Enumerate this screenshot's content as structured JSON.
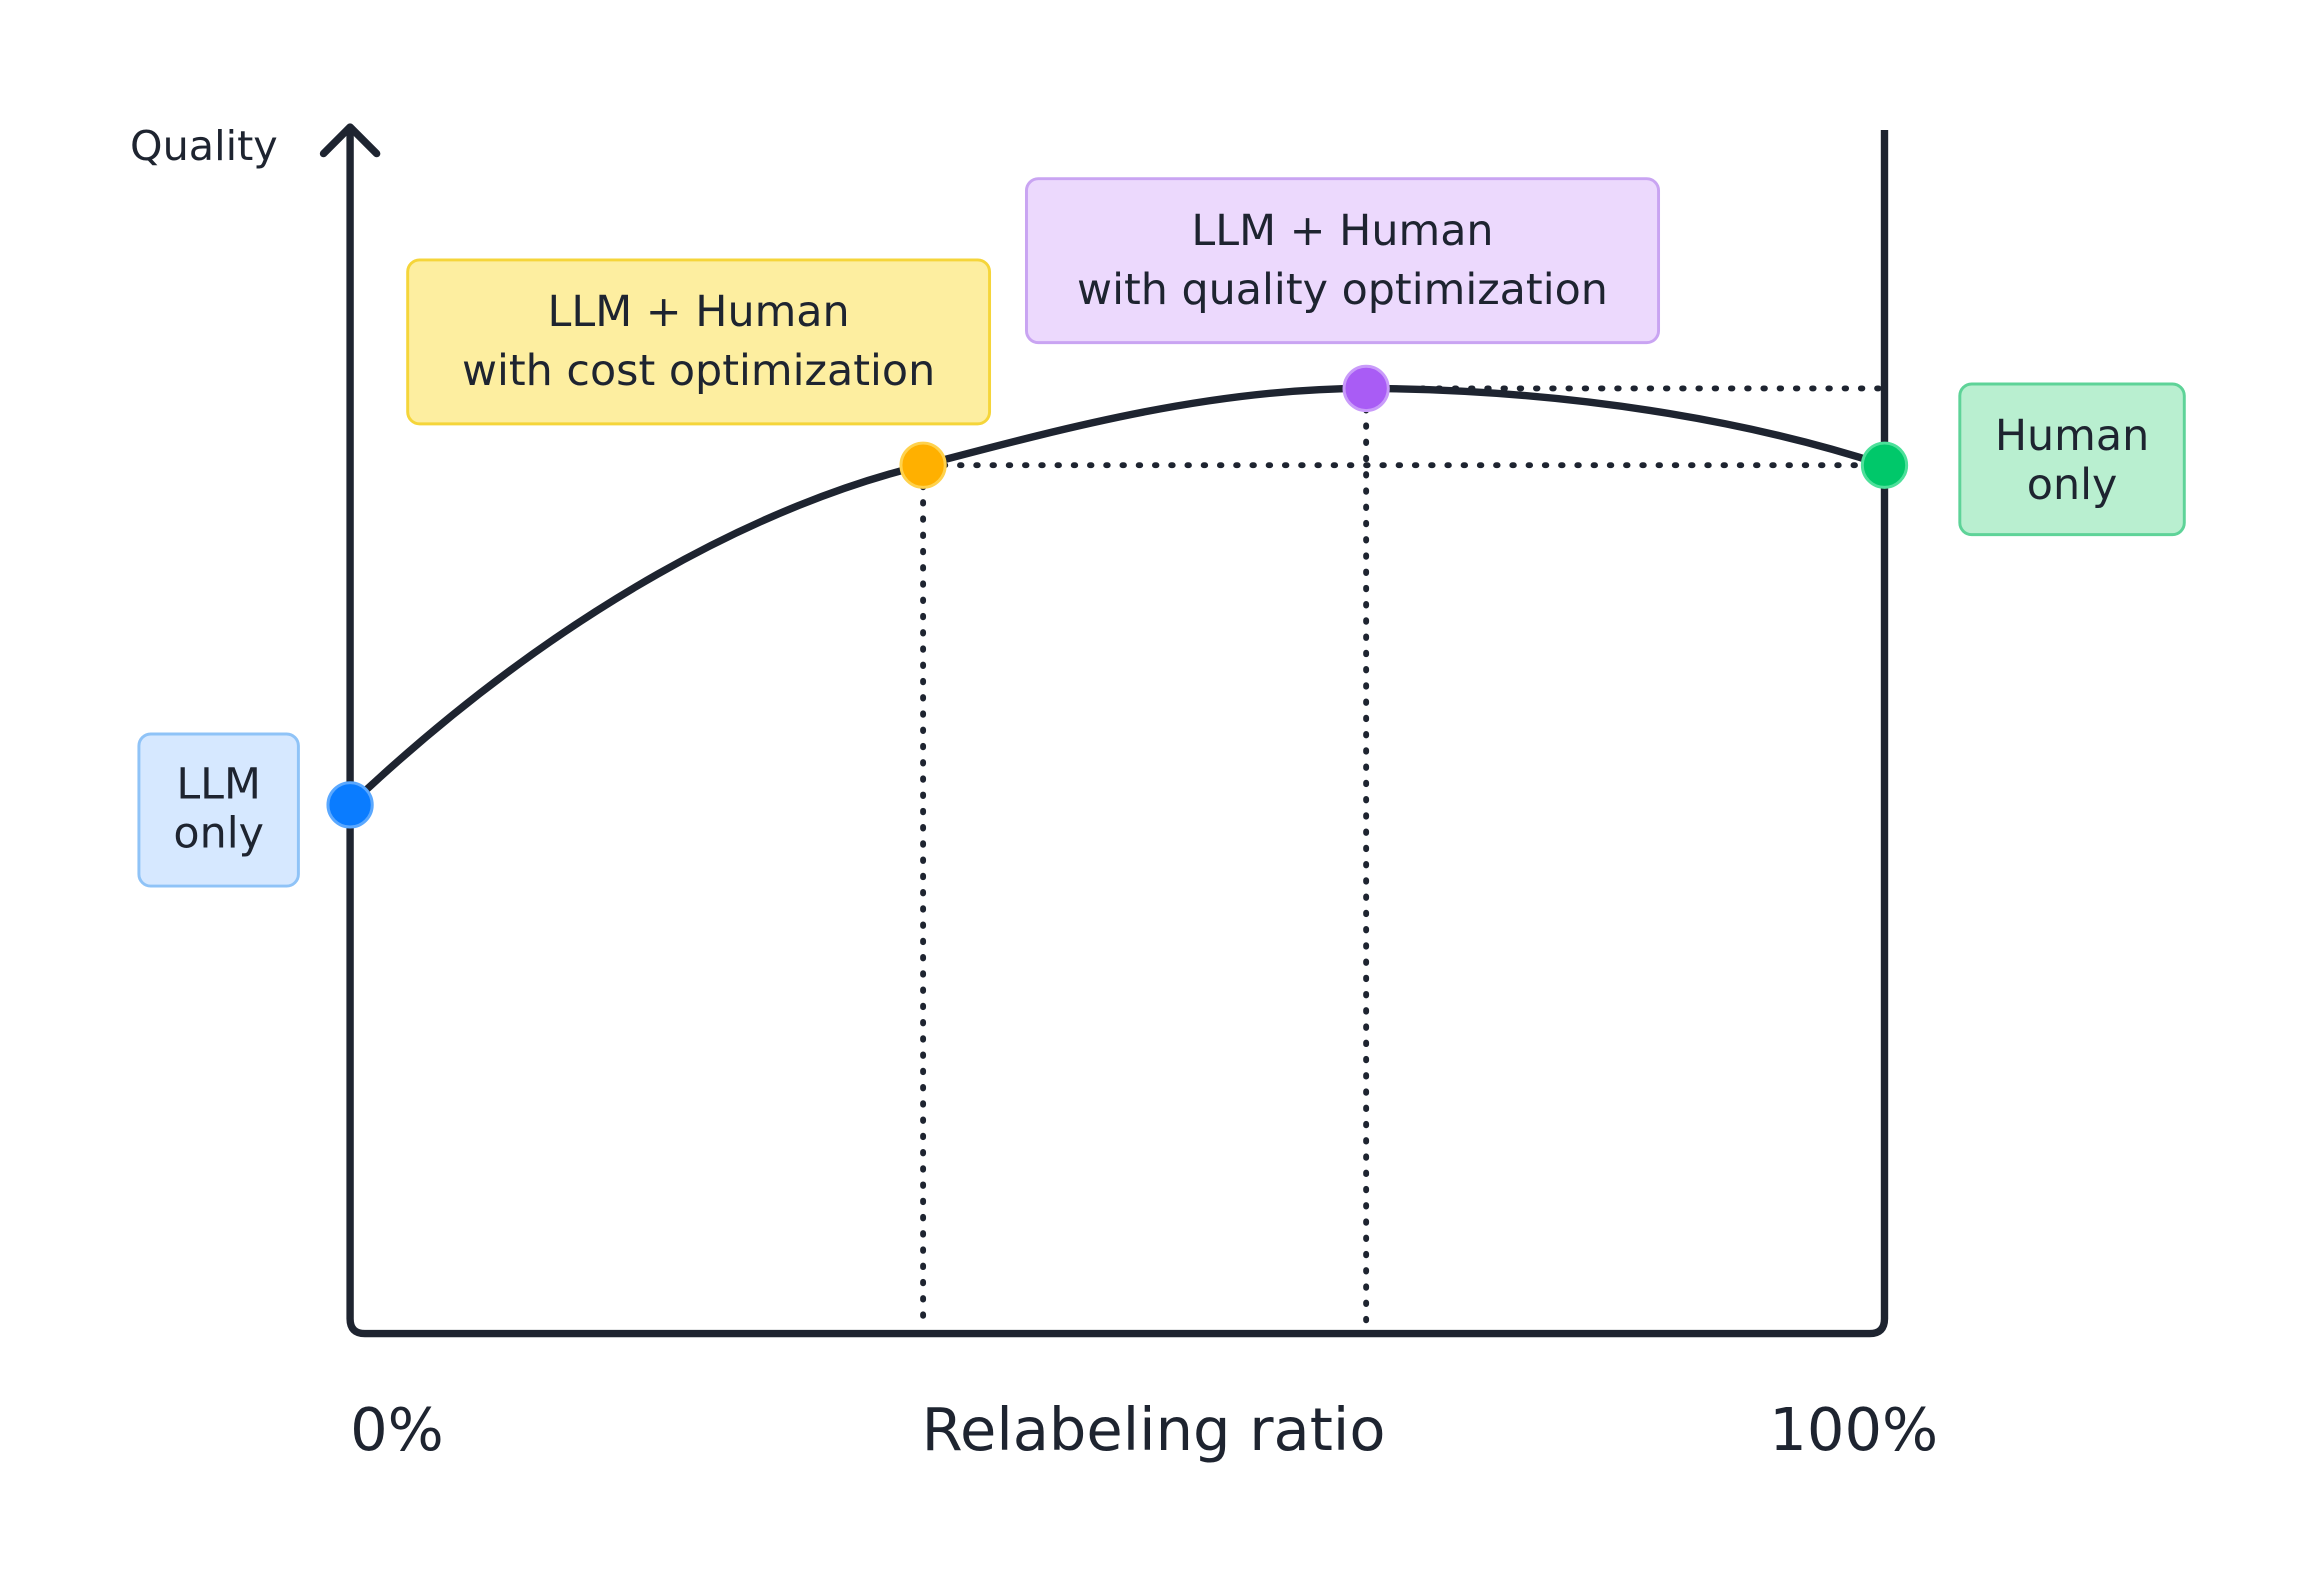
{
  "axes": {
    "y_label": "Quality",
    "x_label": "Relabeling ratio",
    "x_start": "0%",
    "x_end": "100%"
  },
  "nodes": [
    {
      "lines": [
        "LLM",
        "only"
      ]
    },
    {
      "lines": [
        "LLM + Human",
        "with cost optimization"
      ]
    },
    {
      "lines": [
        "LLM + Human",
        "with quality optimization"
      ]
    },
    {
      "lines": [
        "Human",
        "only"
      ]
    }
  ]
}
